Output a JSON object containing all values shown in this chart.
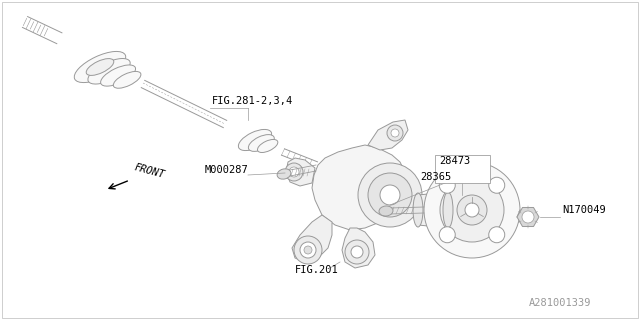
{
  "background_color": "#ffffff",
  "line_color": "#999999",
  "text_color": "#000000",
  "figsize": [
    6.4,
    3.2
  ],
  "dpi": 100,
  "labels": {
    "fig281": "FIG.281-2,3,4",
    "front": "FRONT",
    "m000287": "M000287",
    "fig201": "FIG.201",
    "28473": "28473",
    "28365": "28365",
    "n170049": "N170049",
    "watermark": "A281001339"
  }
}
